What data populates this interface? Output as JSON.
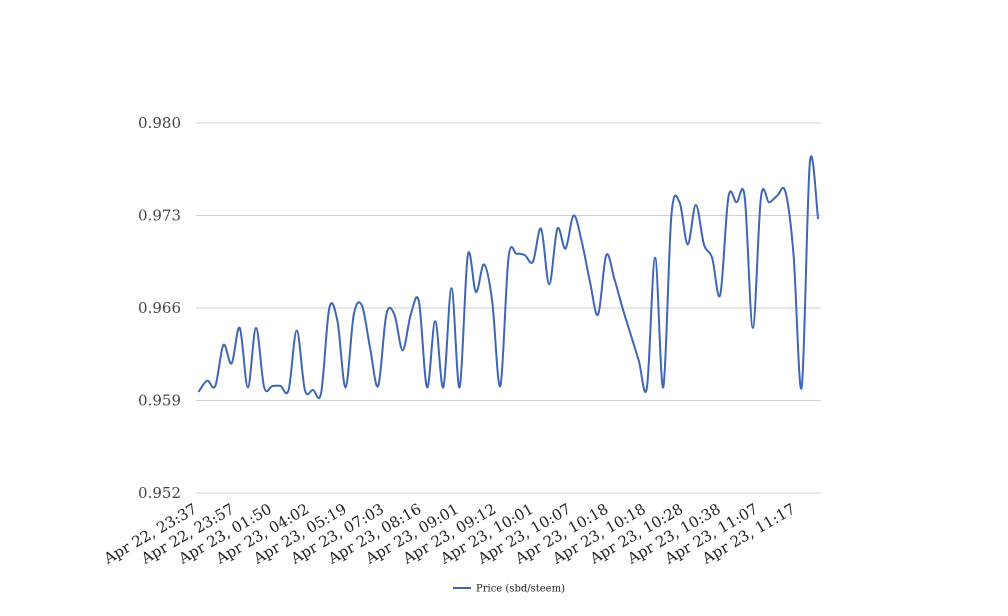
{
  "chart_data": {
    "type": "line",
    "title": "",
    "xlabel": "",
    "ylabel": "",
    "ylim": [
      0.952,
      0.98
    ],
    "yticks": [
      "0.952",
      "0.959",
      "0.966",
      "0.973",
      "0.980"
    ],
    "ytick_values": [
      0.952,
      0.959,
      0.966,
      0.973,
      0.98
    ],
    "grid": true,
    "legend_position": "bottom-center",
    "line_color": "#3e66b4",
    "x_tick_labels": [
      "Apr 22, 23:37",
      "Apr 22, 23:57",
      "Apr 23, 01:50",
      "Apr 23, 04:02",
      "Apr 23, 05:19",
      "Apr 23, 07:03",
      "Apr 23, 08:16",
      "Apr 23, 09:01",
      "Apr 23, 09:12",
      "Apr 23, 10:01",
      "Apr 23, 10:07",
      "Apr 23, 10:18",
      "Apr 23, 10:18",
      "Apr 23, 10:28",
      "Apr 23, 10:38",
      "Apr 23, 11:07",
      "Apr 23, 11:17"
    ],
    "series": [
      {
        "name": "Price (sbd/steem)",
        "values": [
          0.9597,
          0.9605,
          0.9601,
          0.9632,
          0.9618,
          0.9645,
          0.96,
          0.9645,
          0.96,
          0.9601,
          0.9601,
          0.9598,
          0.9643,
          0.9598,
          0.9598,
          0.9596,
          0.966,
          0.965,
          0.96,
          0.9655,
          0.9662,
          0.963,
          0.9601,
          0.9655,
          0.9655,
          0.9628,
          0.9655,
          0.9665,
          0.96,
          0.965,
          0.96,
          0.9675,
          0.96,
          0.97,
          0.9672,
          0.9693,
          0.9665,
          0.9601,
          0.9698,
          0.9701,
          0.97,
          0.9695,
          0.972,
          0.9678,
          0.972,
          0.9705,
          0.973,
          0.971,
          0.968,
          0.9655,
          0.97,
          0.9682,
          0.966,
          0.964,
          0.962,
          0.96,
          0.9698,
          0.96,
          0.973,
          0.974,
          0.9708,
          0.9738,
          0.9708,
          0.9698,
          0.967,
          0.9744,
          0.974,
          0.9744,
          0.9645,
          0.9744,
          0.974,
          0.9745,
          0.9748,
          0.97,
          0.96,
          0.977,
          0.9728
        ]
      }
    ]
  }
}
